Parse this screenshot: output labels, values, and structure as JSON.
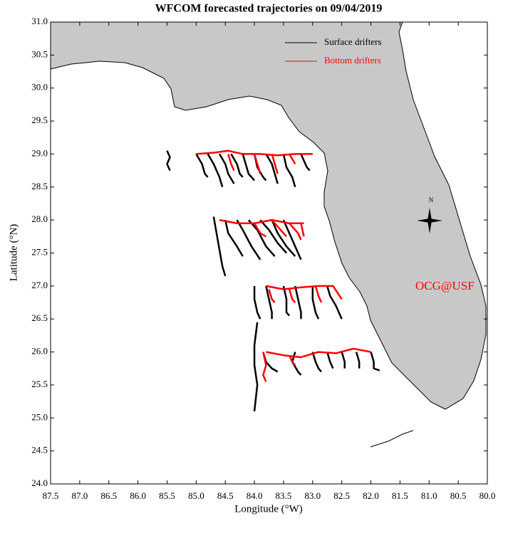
{
  "chart_data": {
    "type": "trajectory",
    "title": "WFCOM forecasted trajectories on 09/04/2019",
    "x_label": "Longitude (°W)",
    "y_label": "Latitude (°N)",
    "annotation": "OCG@USF",
    "compass_label": "N",
    "xlim": [
      87.5,
      80.0
    ],
    "ylim": [
      24.0,
      31.0
    ],
    "xticks": [
      87.5,
      {
        "value": 87,
        "label": "87.0"
      },
      86.5,
      {
        "value": 86,
        "label": "86.0"
      },
      85.5,
      {
        "value": 85,
        "label": "85.0"
      },
      84.5,
      {
        "value": 84,
        "label": "84.0"
      },
      83.5,
      {
        "value": 83,
        "label": "83.0"
      },
      82.5,
      {
        "value": 82,
        "label": "82.0"
      },
      81.5,
      {
        "value": 81,
        "label": "81.0"
      },
      80.5,
      {
        "value": 80,
        "label": "80.0"
      }
    ],
    "yticks": [
      {
        "value": 24,
        "label": "24.0"
      },
      24.5,
      {
        "value": 25,
        "label": "25.0"
      },
      25.5,
      {
        "value": 26,
        "label": "26.0"
      },
      26.5,
      {
        "value": 27,
        "label": "27.0"
      },
      27.5,
      {
        "value": 28,
        "label": "28.0"
      },
      28.5,
      {
        "value": 29,
        "label": "29.0"
      },
      29.5,
      {
        "value": 30,
        "label": "30.0"
      },
      30.5,
      {
        "value": 31,
        "label": "31.0"
      }
    ],
    "series": [
      {
        "name": "Surface drifters",
        "color": "#000000",
        "tracks": [
          {
            "x": [
              85.5,
              85.45,
              85.5,
              85.45
            ],
            "y": [
              29.05,
              28.95,
              28.85,
              28.75
            ]
          },
          {
            "x": [
              85.0,
              84.9,
              84.85,
              84.8
            ],
            "y": [
              29.0,
              28.85,
              28.7,
              28.65
            ]
          },
          {
            "x": [
              84.8,
              84.7,
              84.6,
              84.55
            ],
            "y": [
              29.0,
              28.85,
              28.65,
              28.5
            ]
          },
          {
            "x": [
              84.6,
              84.5,
              84.45,
              84.35
            ],
            "y": [
              29.0,
              28.85,
              28.7,
              28.55
            ]
          },
          {
            "x": [
              84.4,
              84.3,
              84.25,
              84.2
            ],
            "y": [
              29.0,
              28.85,
              28.7,
              28.65
            ]
          },
          {
            "x": [
              84.2,
              84.15,
              84.1,
              84.0
            ],
            "y": [
              29.0,
              28.85,
              28.7,
              28.6
            ]
          },
          {
            "x": [
              84.0,
              83.95,
              83.85,
              83.8
            ],
            "y": [
              29.0,
              28.8,
              28.65,
              28.6
            ]
          },
          {
            "x": [
              83.8,
              83.7,
              83.65,
              83.6
            ],
            "y": [
              29.0,
              28.85,
              28.7,
              28.55
            ]
          },
          {
            "x": [
              83.5,
              83.45,
              83.35,
              83.3
            ],
            "y": [
              29.0,
              28.8,
              28.65,
              28.5
            ]
          },
          {
            "x": [
              83.2,
              83.15,
              83.1,
              83.05
            ],
            "y": [
              29.0,
              28.9,
              28.8,
              28.75
            ]
          },
          {
            "x": [
              84.7,
              84.65,
              84.6,
              84.55,
              84.5
            ],
            "y": [
              28.05,
              27.8,
              27.55,
              27.3,
              27.15
            ]
          },
          {
            "x": [
              84.5,
              84.45,
              84.3,
              84.2
            ],
            "y": [
              28.0,
              27.8,
              27.6,
              27.45
            ]
          },
          {
            "x": [
              84.3,
              84.2,
              84.05,
              83.9
            ],
            "y": [
              28.0,
              27.85,
              27.6,
              27.4
            ]
          },
          {
            "x": [
              84.1,
              83.95,
              83.8,
              83.65
            ],
            "y": [
              28.0,
              27.85,
              27.6,
              27.45
            ]
          },
          {
            "x": [
              83.9,
              83.75,
              83.6,
              83.45
            ],
            "y": [
              28.0,
              27.85,
              27.65,
              27.5
            ]
          },
          {
            "x": [
              83.7,
              83.6,
              83.45,
              83.3
            ],
            "y": [
              28.0,
              27.8,
              27.6,
              27.45
            ]
          },
          {
            "x": [
              83.5,
              83.4,
              83.3,
              83.2
            ],
            "y": [
              28.0,
              27.8,
              27.6,
              27.4
            ]
          },
          {
            "x": [
              84.0,
              84.0,
              83.95,
              83.9
            ],
            "y": [
              27.0,
              26.8,
              26.6,
              26.5
            ]
          },
          {
            "x": [
              83.8,
              83.75,
              83.7,
              83.7
            ],
            "y": [
              27.0,
              26.8,
              26.6,
              26.5
            ]
          },
          {
            "x": [
              83.5,
              83.45,
              83.45,
              83.4
            ],
            "y": [
              27.0,
              26.8,
              26.6,
              26.55
            ]
          },
          {
            "x": [
              83.3,
              83.25,
              83.2,
              83.2
            ],
            "y": [
              27.0,
              26.8,
              26.6,
              26.5
            ]
          },
          {
            "x": [
              83.0,
              83.0,
              82.95,
              82.9
            ],
            "y": [
              27.0,
              26.8,
              26.6,
              26.5
            ]
          },
          {
            "x": [
              82.75,
              82.7,
              82.6,
              82.5
            ],
            "y": [
              27.0,
              26.85,
              26.7,
              26.5
            ]
          },
          {
            "x": [
              83.95,
              84.0,
              84.0,
              83.95,
              84.0
            ],
            "y": [
              26.45,
              26.1,
              25.8,
              25.5,
              25.1
            ]
          },
          {
            "x": [
              83.85,
              83.8,
              83.7,
              83.6
            ],
            "y": [
              26.0,
              25.85,
              25.75,
              25.7
            ]
          },
          {
            "x": [
              83.3,
              83.35,
              83.25,
              83.2
            ],
            "y": [
              26.0,
              25.85,
              25.7,
              25.65
            ]
          },
          {
            "x": [
              83.0,
              82.95,
              82.9,
              82.85
            ],
            "y": [
              26.0,
              25.85,
              25.75,
              25.7
            ]
          },
          {
            "x": [
              82.75,
              82.7,
              82.65
            ],
            "y": [
              26.0,
              25.85,
              25.75
            ]
          },
          {
            "x": [
              82.5,
              82.45,
              82.45
            ],
            "y": [
              26.0,
              25.85,
              25.75
            ]
          },
          {
            "x": [
              82.25,
              82.2,
              82.2
            ],
            "y": [
              26.0,
              25.85,
              25.75
            ]
          },
          {
            "x": [
              82.0,
              81.95,
              81.95,
              81.85
            ],
            "y": [
              26.0,
              25.85,
              25.75,
              25.72
            ]
          }
        ]
      },
      {
        "name": "Bottom drifters",
        "color": "#ff0000",
        "tracks": [
          {
            "x": [
              85.0,
              84.7,
              84.45,
              84.2,
              83.9,
              83.6,
              83.3,
              83.0
            ],
            "y": [
              29.0,
              29.02,
              29.05,
              29.0,
              29.0,
              28.98,
              29.0,
              29.0
            ]
          },
          {
            "x": [
              84.45,
              84.4,
              84.35
            ],
            "y": [
              29.0,
              28.85,
              28.75
            ]
          },
          {
            "x": [
              84.0,
              83.95,
              83.9
            ],
            "y": [
              29.0,
              28.85,
              28.7
            ]
          },
          {
            "x": [
              83.7,
              83.65,
              83.6
            ],
            "y": [
              29.0,
              28.85,
              28.7
            ]
          },
          {
            "x": [
              83.4,
              83.3
            ],
            "y": [
              29.0,
              28.85
            ]
          },
          {
            "x": [
              84.6,
              84.3,
              84.0,
              83.7,
              83.4,
              83.15
            ],
            "y": [
              28.0,
              27.95,
              27.95,
              28.0,
              27.95,
              27.95
            ]
          },
          {
            "x": [
              84.0,
              83.9,
              83.8
            ],
            "y": [
              27.95,
              27.8,
              27.75
            ]
          },
          {
            "x": [
              83.7,
              83.55,
              83.45
            ],
            "y": [
              28.0,
              27.85,
              27.75
            ]
          },
          {
            "x": [
              83.4,
              83.25,
              83.2
            ],
            "y": [
              27.95,
              27.8,
              27.7
            ]
          },
          {
            "x": [
              83.2,
              83.15
            ],
            "y": [
              27.95,
              27.75
            ]
          },
          {
            "x": [
              83.8,
              83.5,
              83.2,
              82.9,
              82.65,
              82.5
            ],
            "y": [
              27.0,
              26.95,
              26.98,
              27.0,
              27.0,
              26.8
            ]
          },
          {
            "x": [
              83.75,
              83.7,
              83.65
            ],
            "y": [
              26.95,
              26.8,
              26.75
            ]
          },
          {
            "x": [
              83.4,
              83.35,
              83.3
            ],
            "y": [
              26.95,
              26.8,
              26.75
            ]
          },
          {
            "x": [
              82.95,
              82.9,
              82.85
            ],
            "y": [
              27.0,
              26.85,
              26.75
            ]
          },
          {
            "x": [
              83.8,
              83.5,
              83.2,
              82.9,
              82.6,
              82.3,
              82.0
            ],
            "y": [
              26.0,
              25.95,
              25.92,
              26.0,
              25.98,
              26.05,
              26.0
            ]
          },
          {
            "x": [
              83.85,
              83.8,
              83.85,
              83.8
            ],
            "y": [
              26.0,
              25.8,
              25.65,
              25.55
            ]
          },
          {
            "x": [
              83.4,
              83.35,
              83.3
            ],
            "y": [
              25.95,
              25.85,
              25.8
            ]
          }
        ]
      }
    ]
  }
}
